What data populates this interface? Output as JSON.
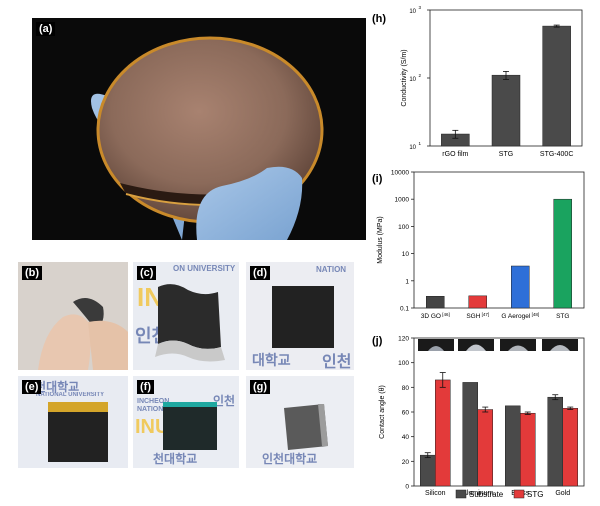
{
  "photos": {
    "a": {
      "label": "(a)"
    },
    "b": {
      "label": "(b)"
    },
    "c": {
      "label": "(c)"
    },
    "d": {
      "label": "(d)"
    },
    "e": {
      "label": "(e)"
    },
    "f": {
      "label": "(f)"
    },
    "g": {
      "label": "(g)"
    },
    "banner_texts": {
      "univ": "ON UNIVERSITY",
      "nation": "NATION",
      "incheon": "INCHEON",
      "national": "NATIONAL UNIV",
      "national_univ": "NATIONAL UNIVERSITY",
      "korean_1": "인천",
      "korean_2": "대학교",
      "korean_3": "인천",
      "korean_4": "인천대학교",
      "korean_5": "천대학교",
      "korean_6": "인천",
      "korean_7": "인천대학교",
      "logo": "INU"
    }
  },
  "chart_data": [
    {
      "panel": "(h)",
      "type": "bar",
      "yscale": "log",
      "categories": [
        "rGO film",
        "STG",
        "STG-400C"
      ],
      "values": [
        15,
        110,
        580
      ],
      "errors": [
        2,
        15,
        20
      ],
      "ylabel": "Conductivity (S/m)",
      "ylim": [
        10,
        1000
      ],
      "yticks": [
        {
          "v": 10,
          "label": "10"
        },
        {
          "v": 100,
          "label": "10"
        },
        {
          "v": 1000,
          "label": "10"
        }
      ],
      "ytick_exponents": [
        "1",
        "2",
        "3"
      ],
      "colors": [
        "#4a4a4a",
        "#4a4a4a",
        "#4a4a4a"
      ]
    },
    {
      "panel": "(i)",
      "type": "bar",
      "yscale": "log",
      "categories": [
        "3D GO",
        "SGH",
        "G Aerogel",
        "STG"
      ],
      "refs": [
        "[46]",
        "[47]",
        "[48]",
        ""
      ],
      "values": [
        0.27,
        0.28,
        3.5,
        1000
      ],
      "ylabel": "Modulus (MPa)",
      "ylim": [
        0.1,
        10000
      ],
      "yticks": [
        "0.1",
        "1",
        "10",
        "100",
        "1000",
        "10000"
      ],
      "colors": [
        "#444444",
        "#e33a3a",
        "#2e6fd8",
        "#1aa35f"
      ]
    },
    {
      "panel": "(j)",
      "type": "bar",
      "categories": [
        "Silicon",
        "Aluminum",
        "Brass",
        "Gold"
      ],
      "series": [
        {
          "name": "Substrate",
          "values": [
            25,
            84,
            65,
            72
          ],
          "errors": [
            2,
            0,
            0,
            2
          ],
          "color": "#4a4a4a"
        },
        {
          "name": "STG",
          "values": [
            86,
            62,
            59,
            63
          ],
          "errors": [
            6,
            2,
            1,
            1
          ],
          "color": "#e33a3a"
        }
      ],
      "ylabel": "Contact angle (θ)",
      "ylim": [
        0,
        120
      ],
      "yticks": [
        "0",
        "20",
        "40",
        "60",
        "80",
        "100",
        "120"
      ],
      "legend": "bottom"
    }
  ]
}
